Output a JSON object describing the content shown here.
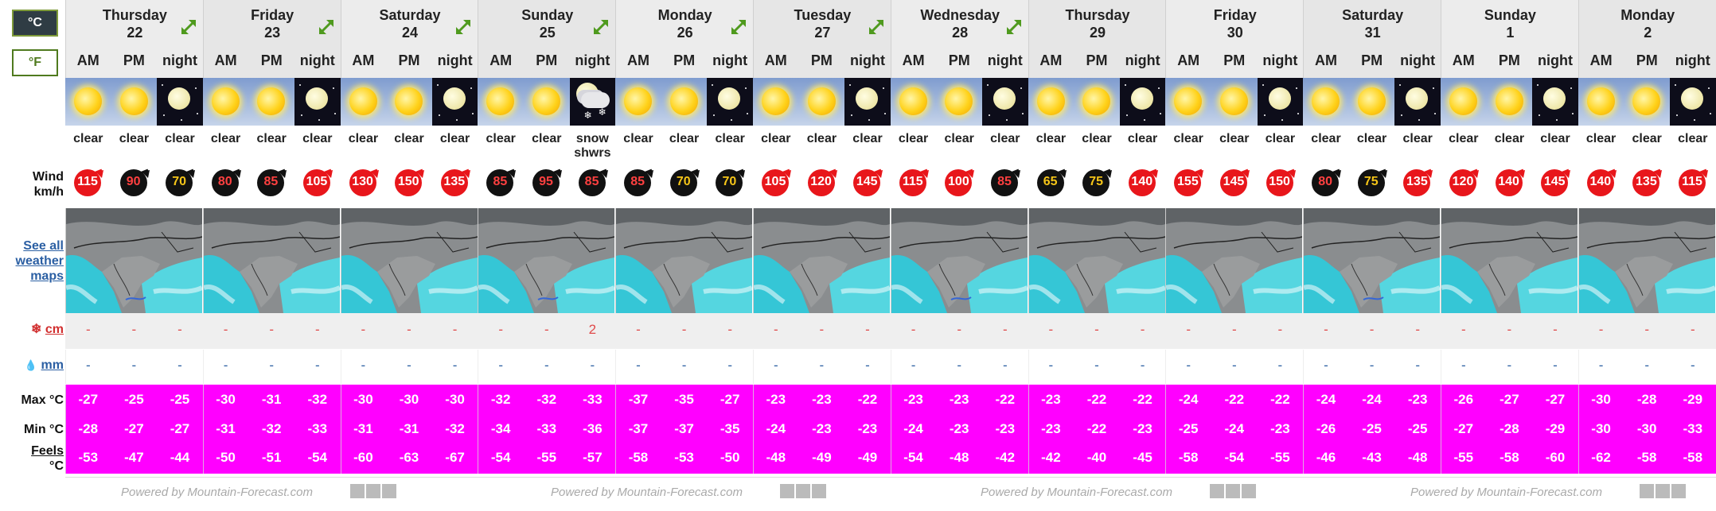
{
  "units": {
    "celsius": "°C",
    "fahrenheit": "°F"
  },
  "labels": {
    "wind": "Wind",
    "wind_unit": "km/h",
    "maps": "See all weather maps",
    "snow_unit": "cm",
    "rain_unit": "mm",
    "max": "Max °C",
    "min": "Min °C",
    "feels": "Feels",
    "feels_unit": "°C"
  },
  "periods": [
    "AM",
    "PM",
    "night"
  ],
  "days": [
    {
      "name": "Thursday",
      "date": "22",
      "expand": true,
      "conditions": [
        "sun",
        "sun",
        "moon"
      ],
      "phrases": [
        "clear",
        "clear",
        "clear"
      ],
      "wind": [
        115,
        90,
        70
      ],
      "wind_style": [
        "red",
        "black",
        "black-y"
      ],
      "snow": [
        "-",
        "-",
        "-"
      ],
      "rain": [
        "-",
        "-",
        "-"
      ],
      "max": [
        "-27",
        "-25",
        "-25"
      ],
      "min": [
        "-28",
        "-27",
        "-27"
      ],
      "feels": [
        "-53",
        "-47",
        "-44"
      ]
    },
    {
      "name": "Friday",
      "date": "23",
      "expand": true,
      "conditions": [
        "sun",
        "sun",
        "moon"
      ],
      "phrases": [
        "clear",
        "clear",
        "clear"
      ],
      "wind": [
        80,
        85,
        105
      ],
      "wind_style": [
        "black-r",
        "black-r",
        "red"
      ],
      "snow": [
        "-",
        "-",
        "-"
      ],
      "rain": [
        "-",
        "-",
        "-"
      ],
      "max": [
        "-30",
        "-31",
        "-32"
      ],
      "min": [
        "-31",
        "-32",
        "-33"
      ],
      "feels": [
        "-50",
        "-51",
        "-54"
      ]
    },
    {
      "name": "Saturday",
      "date": "24",
      "expand": true,
      "conditions": [
        "sun",
        "sun",
        "moon"
      ],
      "phrases": [
        "clear",
        "clear",
        "clear"
      ],
      "wind": [
        130,
        150,
        135
      ],
      "wind_style": [
        "red",
        "red",
        "red"
      ],
      "snow": [
        "-",
        "-",
        "-"
      ],
      "rain": [
        "-",
        "-",
        "-"
      ],
      "max": [
        "-30",
        "-30",
        "-30"
      ],
      "min": [
        "-31",
        "-31",
        "-32"
      ],
      "feels": [
        "-60",
        "-63",
        "-67"
      ]
    },
    {
      "name": "Sunday",
      "date": "25",
      "expand": true,
      "conditions": [
        "sun",
        "sun",
        "snow"
      ],
      "phrases": [
        "clear",
        "clear",
        "snow shwrs"
      ],
      "wind": [
        85,
        95,
        85
      ],
      "wind_style": [
        "black-r",
        "black-r",
        "black-r"
      ],
      "snow": [
        "-",
        "-",
        "2"
      ],
      "rain": [
        "-",
        "-",
        "-"
      ],
      "max": [
        "-32",
        "-32",
        "-33"
      ],
      "min": [
        "-34",
        "-33",
        "-36"
      ],
      "feels": [
        "-54",
        "-55",
        "-57"
      ]
    },
    {
      "name": "Monday",
      "date": "26",
      "expand": true,
      "conditions": [
        "sun",
        "sun",
        "moon"
      ],
      "phrases": [
        "clear",
        "clear",
        "clear"
      ],
      "wind": [
        85,
        70,
        70
      ],
      "wind_style": [
        "black-r",
        "black-y",
        "black-y"
      ],
      "snow": [
        "-",
        "-",
        "-"
      ],
      "rain": [
        "-",
        "-",
        "-"
      ],
      "max": [
        "-37",
        "-35",
        "-27"
      ],
      "min": [
        "-37",
        "-37",
        "-35"
      ],
      "feels": [
        "-58",
        "-53",
        "-50"
      ]
    },
    {
      "name": "Tuesday",
      "date": "27",
      "expand": true,
      "conditions": [
        "sun",
        "sun",
        "moon"
      ],
      "phrases": [
        "clear",
        "clear",
        "clear"
      ],
      "wind": [
        105,
        120,
        145
      ],
      "wind_style": [
        "red",
        "red",
        "red"
      ],
      "snow": [
        "-",
        "-",
        "-"
      ],
      "rain": [
        "-",
        "-",
        "-"
      ],
      "max": [
        "-23",
        "-23",
        "-22"
      ],
      "min": [
        "-24",
        "-23",
        "-23"
      ],
      "feels": [
        "-48",
        "-49",
        "-49"
      ]
    },
    {
      "name": "Wednesday",
      "date": "28",
      "expand": true,
      "conditions": [
        "sun",
        "sun",
        "moon"
      ],
      "phrases": [
        "clear",
        "clear",
        "clear"
      ],
      "wind": [
        115,
        100,
        85
      ],
      "wind_style": [
        "red",
        "red",
        "black-r"
      ],
      "snow": [
        "-",
        "-",
        "-"
      ],
      "rain": [
        "-",
        "-",
        "-"
      ],
      "max": [
        "-23",
        "-23",
        "-22"
      ],
      "min": [
        "-24",
        "-23",
        "-23"
      ],
      "feels": [
        "-54",
        "-48",
        "-42"
      ]
    },
    {
      "name": "Thursday",
      "date": "29",
      "expand": false,
      "conditions": [
        "sun",
        "sun",
        "moon"
      ],
      "phrases": [
        "clear",
        "clear",
        "clear"
      ],
      "wind": [
        65,
        75,
        140
      ],
      "wind_style": [
        "black-y",
        "black-y",
        "red"
      ],
      "snow": [
        "-",
        "-",
        "-"
      ],
      "rain": [
        "-",
        "-",
        "-"
      ],
      "max": [
        "-23",
        "-22",
        "-22"
      ],
      "min": [
        "-23",
        "-22",
        "-23"
      ],
      "feels": [
        "-42",
        "-40",
        "-45"
      ]
    },
    {
      "name": "Friday",
      "date": "30",
      "expand": false,
      "conditions": [
        "sun",
        "sun",
        "moon"
      ],
      "phrases": [
        "clear",
        "clear",
        "clear"
      ],
      "wind": [
        155,
        145,
        150
      ],
      "wind_style": [
        "red",
        "red",
        "red"
      ],
      "snow": [
        "-",
        "-",
        "-"
      ],
      "rain": [
        "-",
        "-",
        "-"
      ],
      "max": [
        "-24",
        "-22",
        "-22"
      ],
      "min": [
        "-25",
        "-24",
        "-23"
      ],
      "feels": [
        "-58",
        "-54",
        "-55"
      ]
    },
    {
      "name": "Saturday",
      "date": "31",
      "expand": false,
      "conditions": [
        "sun",
        "sun",
        "moon"
      ],
      "phrases": [
        "clear",
        "clear",
        "clear"
      ],
      "wind": [
        80,
        75,
        135
      ],
      "wind_style": [
        "black-r",
        "black-y",
        "red"
      ],
      "snow": [
        "-",
        "-",
        "-"
      ],
      "rain": [
        "-",
        "-",
        "-"
      ],
      "max": [
        "-24",
        "-24",
        "-23"
      ],
      "min": [
        "-26",
        "-25",
        "-25"
      ],
      "feels": [
        "-46",
        "-43",
        "-48"
      ]
    },
    {
      "name": "Sunday",
      "date": "1",
      "expand": false,
      "conditions": [
        "sun",
        "sun",
        "moon"
      ],
      "phrases": [
        "clear",
        "clear",
        "clear"
      ],
      "wind": [
        120,
        140,
        145
      ],
      "wind_style": [
        "red",
        "red",
        "red"
      ],
      "snow": [
        "-",
        "-",
        "-"
      ],
      "rain": [
        "-",
        "-",
        "-"
      ],
      "max": [
        "-26",
        "-27",
        "-27"
      ],
      "min": [
        "-27",
        "-28",
        "-29"
      ],
      "feels": [
        "-55",
        "-58",
        "-60"
      ]
    },
    {
      "name": "Monday",
      "date": "2",
      "expand": false,
      "conditions": [
        "sun",
        "sun",
        "moon"
      ],
      "phrases": [
        "clear",
        "clear",
        "clear"
      ],
      "wind": [
        140,
        135,
        115
      ],
      "wind_style": [
        "red",
        "red",
        "red"
      ],
      "snow": [
        "-",
        "-",
        "-"
      ],
      "rain": [
        "-",
        "-",
        "-"
      ],
      "max": [
        "-30",
        "-28",
        "-29"
      ],
      "min": [
        "-30",
        "-30",
        "-33"
      ],
      "feels": [
        "-62",
        "-58",
        "-58"
      ]
    }
  ],
  "footer": {
    "powered": "Powered by Mountain-Forecast.com"
  },
  "colors": {
    "temp_bg": "#ff00ff",
    "wind_red": "#e8161b",
    "wind_black": "#111111",
    "accent": "#7e9a3a"
  }
}
